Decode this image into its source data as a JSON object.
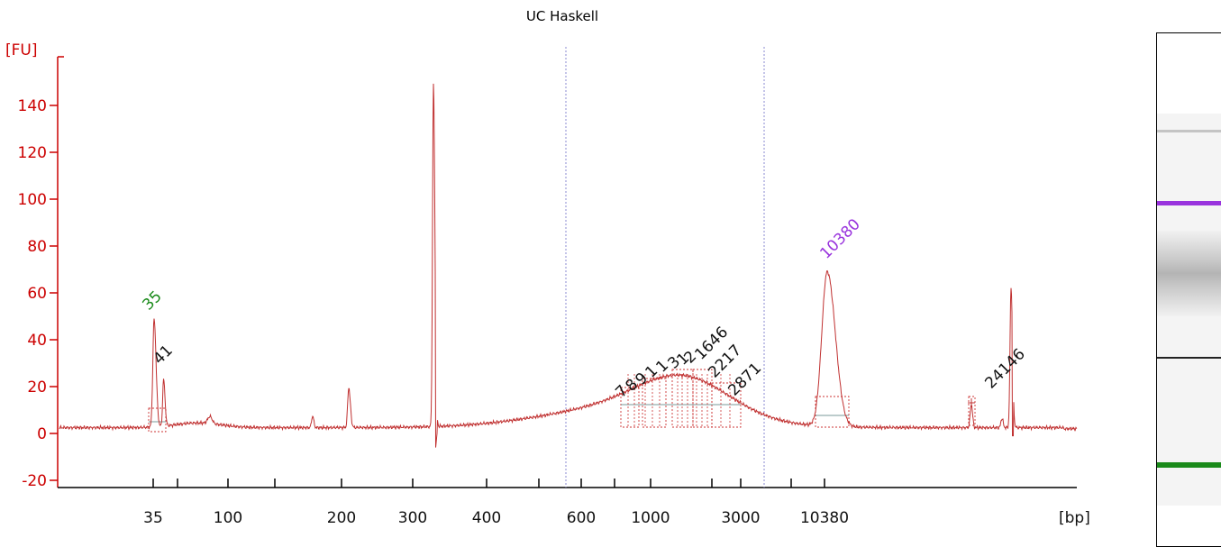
{
  "chart_data": {
    "type": "line",
    "title": "UC Haskell",
    "ylabel": "[FU]",
    "xlabel": "[bp]",
    "ylim": [
      -20,
      150
    ],
    "y_ticks": [
      -20,
      0,
      20,
      40,
      60,
      80,
      100,
      120,
      140
    ],
    "x_scale": "ladder (non-linear bp)",
    "x_tick_labels": [
      "35",
      "100",
      "200",
      "300",
      "400",
      "600",
      "1000",
      "3000",
      "10380"
    ],
    "grid": false,
    "legend": "none",
    "colors": {
      "trace": "#c03030",
      "axis": "#cc0000",
      "lower_marker": "#1a8a1a",
      "upper_marker": "#9933dd",
      "peak_label": "#111111"
    },
    "region_bounds_bp": [
      550,
      3500
    ],
    "series": [
      {
        "values_approx": [
          {
            "bp": 35,
            "fu": 49
          },
          {
            "bp": 41,
            "fu": 25
          },
          {
            "bp": 330,
            "fu": 148
          },
          {
            "bp": 10380,
            "fu": 69
          },
          {
            "bp": 24146,
            "fu": 13
          }
        ]
      }
    ],
    "peak_labels": [
      {
        "text": "35",
        "role": "lower-marker"
      },
      {
        "text": "41",
        "role": "peak"
      },
      {
        "text": "10380",
        "role": "upper-marker"
      },
      {
        "text": "24146",
        "role": "peak"
      },
      {
        "text": "2871",
        "role": "peak"
      },
      {
        "text": "2217",
        "role": "peak"
      },
      {
        "text": "1646",
        "role": "peak"
      }
    ]
  }
}
